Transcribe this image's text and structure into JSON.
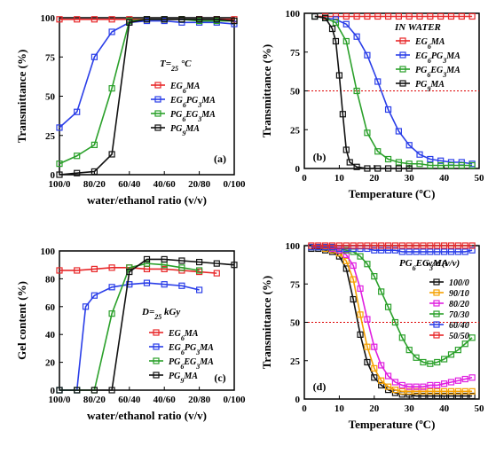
{
  "chart_data": [
    {
      "type": "line",
      "panel_label": "(a)",
      "xlabel": "water/ethanol ratio (v/v)",
      "ylabel": "Transmittance (%)",
      "x_tick_labels": [
        "100/0",
        "80/20",
        "60/40",
        "40/60",
        "20/80",
        "0/100"
      ],
      "x_ticks": [
        0,
        20,
        40,
        60,
        80,
        100
      ],
      "xlim": [
        0,
        100
      ],
      "ylim": [
        0,
        100
      ],
      "y_ticks": [
        0,
        25,
        50,
        75,
        100
      ],
      "annotation": "T=25 °C",
      "legend_position": "right-middle",
      "series": [
        {
          "name": "EG6MA",
          "color": "#e8282a",
          "x": [
            0,
            10,
            20,
            30,
            40,
            50,
            60,
            70,
            80,
            90,
            100
          ],
          "y": [
            99,
            99,
            99,
            99,
            99,
            99,
            99,
            99,
            99,
            99,
            99
          ]
        },
        {
          "name": "EG6PG3MA",
          "color": "#2a3ee8",
          "x": [
            0,
            10,
            20,
            30,
            40,
            50,
            60,
            70,
            80,
            90,
            100
          ],
          "y": [
            30,
            40,
            75,
            91,
            97,
            98,
            98,
            97,
            97,
            97,
            96
          ]
        },
        {
          "name": "PG6EG3MA",
          "color": "#2aa02a",
          "x": [
            0,
            10,
            20,
            30,
            40,
            50,
            60,
            70,
            80,
            90,
            100
          ],
          "y": [
            7,
            12,
            19,
            55,
            98,
            99,
            99,
            99,
            98,
            98,
            98
          ]
        },
        {
          "name": "PG9MA",
          "color": "#111111",
          "x": [
            0,
            10,
            20,
            30,
            40,
            50,
            60,
            70,
            80,
            90,
            100
          ],
          "y": [
            0,
            1,
            2,
            13,
            97,
            99,
            99,
            99,
            99,
            99,
            98
          ]
        }
      ]
    },
    {
      "type": "line",
      "panel_label": "(b)",
      "xlabel": "Temperature (ºC)",
      "ylabel": "Transmittance (%)",
      "xlim": [
        0,
        50
      ],
      "ylim": [
        0,
        100
      ],
      "x_ticks": [
        0,
        10,
        20,
        30,
        40,
        50
      ],
      "y_ticks": [
        0,
        25,
        50,
        75,
        100
      ],
      "annotation": "IN WATER",
      "reference_line_y": 50,
      "legend_position": "top-right",
      "series": [
        {
          "name": "EG6MA",
          "color": "#e8282a",
          "x": [
            3,
            6,
            9,
            12,
            15,
            18,
            21,
            24,
            27,
            30,
            33,
            36,
            39,
            42,
            45,
            48
          ],
          "y": [
            98,
            98,
            98,
            98,
            98,
            98,
            98,
            98,
            98,
            98,
            98,
            98,
            98,
            98,
            98,
            98
          ]
        },
        {
          "name": "EG6PG3MA",
          "color": "#2a3ee8",
          "x": [
            3,
            6,
            9,
            12,
            15,
            18,
            21,
            24,
            27,
            30,
            33,
            36,
            39,
            42,
            45,
            48
          ],
          "y": [
            98,
            97,
            96,
            93,
            85,
            73,
            56,
            38,
            24,
            15,
            9,
            6,
            5,
            4,
            4,
            3
          ]
        },
        {
          "name": "PG6EG3MA",
          "color": "#2aa02a",
          "x": [
            3,
            6,
            9,
            12,
            15,
            18,
            21,
            24,
            27,
            30,
            33,
            36,
            39,
            42,
            45,
            48
          ],
          "y": [
            98,
            97,
            94,
            82,
            50,
            23,
            11,
            6,
            4,
            3,
            3,
            2,
            2,
            2,
            2,
            2
          ]
        },
        {
          "name": "PG9MA",
          "color": "#111111",
          "x": [
            3,
            6,
            8,
            9,
            10,
            11,
            12,
            13,
            15,
            18,
            21,
            24,
            27,
            30
          ],
          "y": [
            98,
            97,
            90,
            82,
            60,
            35,
            12,
            4,
            1,
            0,
            0,
            0,
            0,
            0
          ]
        }
      ]
    },
    {
      "type": "line",
      "panel_label": "(c)",
      "xlabel": "water/ethanol ratio (v/v)",
      "ylabel": "Gel content (%)",
      "x_tick_labels": [
        "100/0",
        "80/20",
        "60/40",
        "40/60",
        "20/80",
        "0/100"
      ],
      "x_ticks": [
        0,
        20,
        40,
        60,
        80,
        100
      ],
      "xlim": [
        0,
        100
      ],
      "ylim": [
        0,
        100
      ],
      "y_ticks": [
        0,
        20,
        40,
        60,
        80,
        100
      ],
      "annotation": "D=25 kGy",
      "legend_position": "right-middle",
      "series": [
        {
          "name": "EG6MA",
          "color": "#e8282a",
          "x": [
            0,
            10,
            20,
            30,
            40,
            50,
            60,
            70,
            80,
            90
          ],
          "y": [
            86,
            86,
            87,
            88,
            88,
            87,
            87,
            86,
            85,
            84
          ]
        },
        {
          "name": "EG6PG3MA",
          "color": "#2a3ee8",
          "x": [
            0,
            10,
            15,
            20,
            30,
            40,
            50,
            60,
            70,
            80
          ],
          "y": [
            0,
            0,
            60,
            68,
            74,
            76,
            77,
            76,
            75,
            72
          ]
        },
        {
          "name": "PG6EG3MA",
          "color": "#2aa02a",
          "x": [
            0,
            10,
            20,
            30,
            40,
            50,
            60,
            70,
            80
          ],
          "y": [
            0,
            0,
            0,
            55,
            88,
            91,
            90,
            88,
            86
          ]
        },
        {
          "name": "PG9MA",
          "color": "#111111",
          "x": [
            0,
            10,
            20,
            30,
            40,
            50,
            60,
            70,
            80,
            90,
            100
          ],
          "y": [
            0,
            0,
            0,
            0,
            85,
            94,
            94,
            93,
            92,
            91,
            90
          ]
        }
      ]
    },
    {
      "type": "line",
      "panel_label": "(d)",
      "xlabel": "Temperature (ºC)",
      "ylabel": "Transmittance (%)",
      "xlim": [
        0,
        50
      ],
      "ylim": [
        0,
        100
      ],
      "x_ticks": [
        0,
        10,
        20,
        30,
        40,
        50
      ],
      "y_ticks": [
        0,
        25,
        50,
        75,
        100
      ],
      "annotation": "PG6EG3MA",
      "legend_title": "w/e (v/v)",
      "reference_line_y": 50,
      "legend_position": "top-right",
      "series": [
        {
          "name": "100/0",
          "color": "#111111",
          "x": [
            2,
            4,
            6,
            8,
            10,
            12,
            14,
            16,
            18,
            20,
            22,
            24,
            26,
            28,
            30,
            32,
            34,
            36,
            38,
            40,
            42,
            44,
            46,
            48
          ],
          "y": [
            98,
            98,
            97,
            96,
            93,
            85,
            65,
            42,
            24,
            14,
            9,
            6,
            4,
            3,
            3,
            2,
            2,
            2,
            2,
            2,
            2,
            2,
            2,
            2
          ]
        },
        {
          "name": "90/10",
          "color": "#f5a000",
          "x": [
            2,
            4,
            6,
            8,
            10,
            12,
            14,
            16,
            18,
            20,
            22,
            24,
            26,
            28,
            30,
            32,
            34,
            36,
            38,
            40,
            42,
            44,
            46,
            48
          ],
          "y": [
            99,
            99,
            98,
            97,
            95,
            90,
            78,
            55,
            34,
            20,
            12,
            8,
            6,
            5,
            5,
            5,
            5,
            5,
            5,
            5,
            5,
            5,
            5,
            5
          ]
        },
        {
          "name": "80/20",
          "color": "#e020e0",
          "x": [
            2,
            4,
            6,
            8,
            10,
            12,
            14,
            16,
            18,
            20,
            22,
            24,
            26,
            28,
            30,
            32,
            34,
            36,
            38,
            40,
            42,
            44,
            46,
            48
          ],
          "y": [
            99,
            99,
            99,
            98,
            97,
            94,
            87,
            72,
            52,
            34,
            22,
            15,
            11,
            9,
            8,
            8,
            8,
            9,
            9,
            10,
            11,
            12,
            13,
            14
          ]
        },
        {
          "name": "70/30",
          "color": "#2aa02a",
          "x": [
            2,
            4,
            6,
            8,
            10,
            12,
            14,
            16,
            18,
            20,
            22,
            24,
            26,
            28,
            30,
            32,
            34,
            36,
            38,
            40,
            42,
            44,
            46,
            48
          ],
          "y": [
            99,
            99,
            99,
            99,
            98,
            97,
            96,
            93,
            88,
            80,
            70,
            60,
            50,
            40,
            32,
            27,
            24,
            23,
            24,
            26,
            29,
            32,
            36,
            40
          ]
        },
        {
          "name": "60/40",
          "color": "#2a3ee8",
          "x": [
            2,
            4,
            6,
            8,
            10,
            12,
            14,
            16,
            18,
            20,
            22,
            24,
            26,
            28,
            30,
            32,
            34,
            36,
            38,
            40,
            42,
            44,
            46,
            48
          ],
          "y": [
            99,
            99,
            99,
            99,
            98,
            98,
            98,
            98,
            98,
            97,
            97,
            97,
            97,
            96,
            96,
            96,
            96,
            96,
            96,
            96,
            96,
            96,
            96,
            97
          ]
        },
        {
          "name": "50/50",
          "color": "#e8282a",
          "x": [
            2,
            4,
            6,
            8,
            10,
            12,
            14,
            16,
            18,
            20,
            22,
            24,
            26,
            28,
            30,
            32,
            34,
            36,
            38,
            40,
            42,
            44,
            46,
            48
          ],
          "y": [
            100,
            100,
            100,
            100,
            100,
            100,
            100,
            100,
            100,
            100,
            100,
            100,
            100,
            100,
            100,
            100,
            100,
            100,
            100,
            100,
            100,
            100,
            100,
            100
          ]
        }
      ]
    }
  ]
}
